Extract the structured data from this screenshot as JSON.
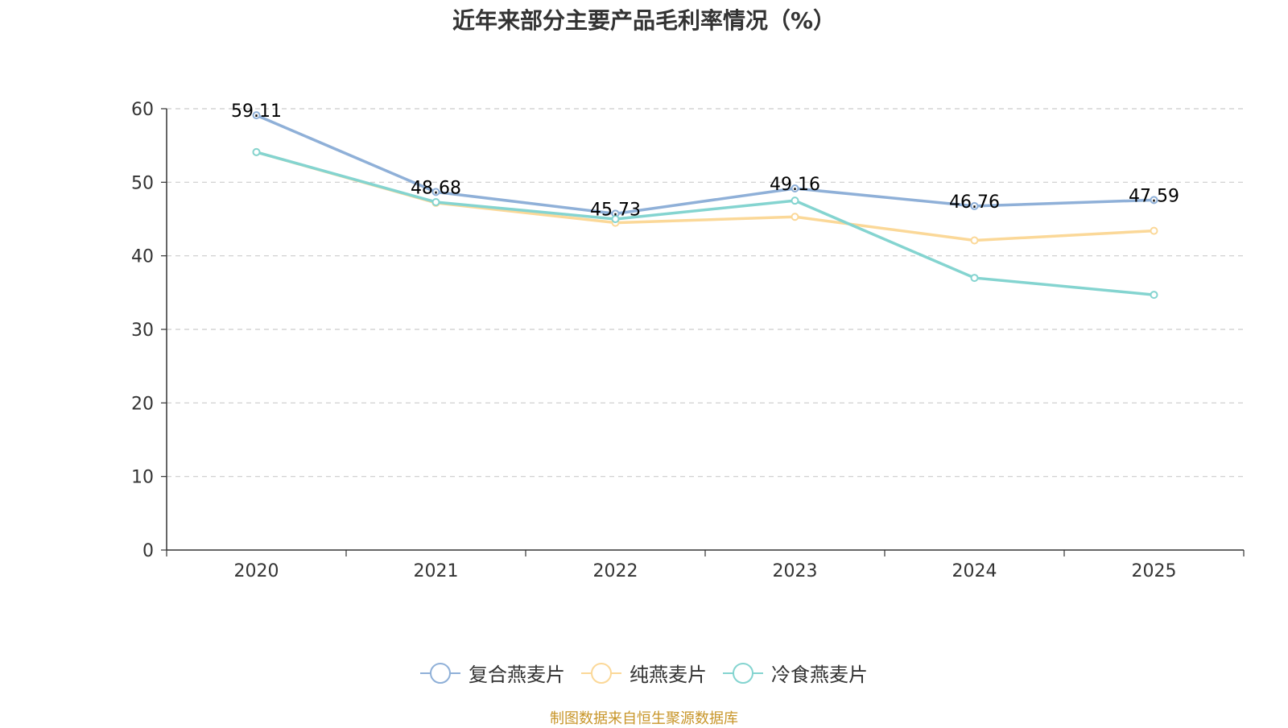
{
  "title": "近年来部分主要产品毛利率情况（%）",
  "source": "制图数据来自恒生聚源数据库",
  "colors": {
    "grid": "#cccccc",
    "axis": "#333333",
    "label": "#000000"
  },
  "chart_data": {
    "type": "line",
    "title": "近年来部分主要产品毛利率情况（%）",
    "categories": [
      "2020",
      "2021",
      "2022",
      "2023",
      "2024",
      "2025"
    ],
    "ylim": [
      0,
      60
    ],
    "yticks": [
      0,
      10,
      20,
      30,
      40,
      50,
      60
    ],
    "grid": true,
    "legend_position": "bottom",
    "series": [
      {
        "name": "复合燕麦片",
        "color": "#8fb0d8",
        "values": [
          59.11,
          48.68,
          45.73,
          49.16,
          46.76,
          47.59
        ],
        "labels": [
          "59.11",
          "48.68",
          "45.73",
          "49.16",
          "46.76",
          "47.59"
        ]
      },
      {
        "name": "纯燕麦片",
        "color": "#fbd898",
        "values": [
          54.1,
          47.2,
          44.5,
          45.3,
          42.1,
          43.4
        ],
        "labels": []
      },
      {
        "name": "冷食燕麦片",
        "color": "#84d4d0",
        "values": [
          54.1,
          47.3,
          45.0,
          47.5,
          37.0,
          34.7
        ],
        "labels": []
      }
    ]
  }
}
